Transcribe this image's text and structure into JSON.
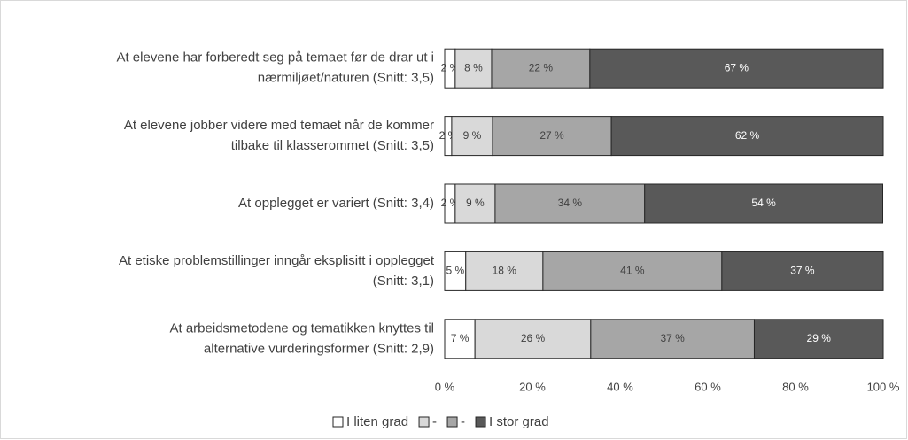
{
  "chart_data": {
    "type": "stacked-barh",
    "categories": [
      [
        "At elevene har forberedt seg på temaet før de drar ut i",
        "nærmiljøet/naturen (Snitt: 3,5)"
      ],
      [
        "At elevene jobber videre med temaet når de kommer",
        "tilbake til klasserommet (Snitt: 3,5)"
      ],
      [
        "At opplegget er variert (Snitt: 3,4)"
      ],
      [
        "At etiske problemstillinger inngår eksplisitt i opplegget",
        "(Snitt: 3,1)"
      ],
      [
        "At arbeidsmetodene og tematikken knyttes til",
        "alternative vurderingsformer (Snitt: 2,9)"
      ]
    ],
    "series": [
      {
        "name": "I liten grad",
        "color": "#ffffff",
        "values": [
          2.4,
          1.6,
          2.4,
          4.8,
          6.9
        ],
        "value_labels": [
          "2 %",
          "2 %",
          "2 %",
          "5 %",
          "7 %"
        ]
      },
      {
        "name": "-",
        "color": "#d9d9d9",
        "values": [
          8.3,
          9.3,
          9.1,
          17.6,
          26.4
        ],
        "value_labels": [
          "8 %",
          "9 %",
          "9 %",
          "18 %",
          "26 %"
        ]
      },
      {
        "name": "-",
        "color": "#a6a6a6",
        "values": [
          22.4,
          27.1,
          34.1,
          40.8,
          37.3
        ],
        "value_labels": [
          "22 %",
          "27 %",
          "34 %",
          "41 %",
          "37 %"
        ]
      },
      {
        "name": "I stor grad",
        "color": "#595959",
        "values": [
          66.9,
          62.0,
          54.3,
          36.8,
          29.4
        ],
        "value_labels": [
          "67 %",
          "62 %",
          "54 %",
          "37 %",
          "29 %"
        ]
      }
    ],
    "xlim": [
      0,
      100
    ],
    "xticks": [
      {
        "value": 0,
        "label": "0 %"
      },
      {
        "value": 20,
        "label": "20 %"
      },
      {
        "value": 40,
        "label": "40 %"
      },
      {
        "value": 60,
        "label": "60 %"
      },
      {
        "value": 80,
        "label": "80 %"
      },
      {
        "value": 100,
        "label": "100 %"
      }
    ],
    "legend": "bottom"
  }
}
